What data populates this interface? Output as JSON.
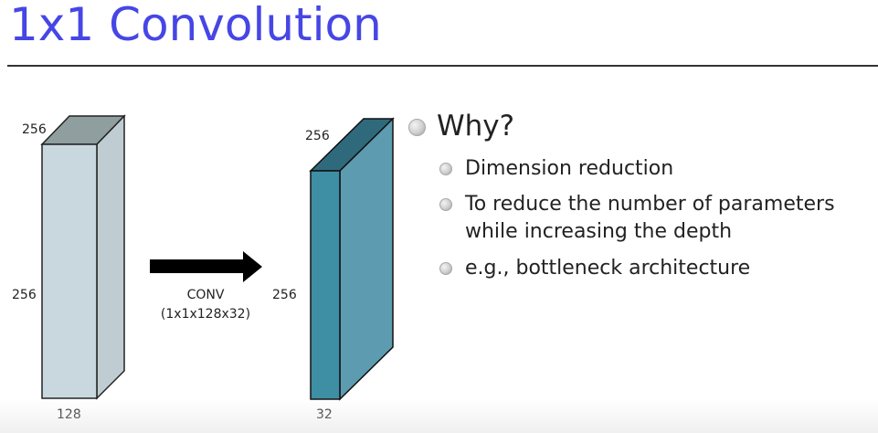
{
  "title": "1x1 Convolution",
  "input_volume": {
    "height": "256",
    "width": "256",
    "depth": "128"
  },
  "operation": {
    "label": "CONV",
    "kernel": "(1x1x128x32)"
  },
  "output_volume": {
    "height": "256",
    "width": "256",
    "depth": "32"
  },
  "bullets": {
    "heading": "Why?",
    "items": [
      "Dimension reduction",
      "To reduce the number of parameters\nwhile increasing the depth",
      "e.g., bottleneck architecture"
    ]
  },
  "colors": {
    "title": "#4646e6",
    "input_front": "#c8d8de",
    "input_side": "#bfcdd2",
    "input_top": "#8f9e9f",
    "output_front": "#3e8ea4",
    "output_side": "#5d9cb0",
    "output_top": "#2f6a7c"
  }
}
